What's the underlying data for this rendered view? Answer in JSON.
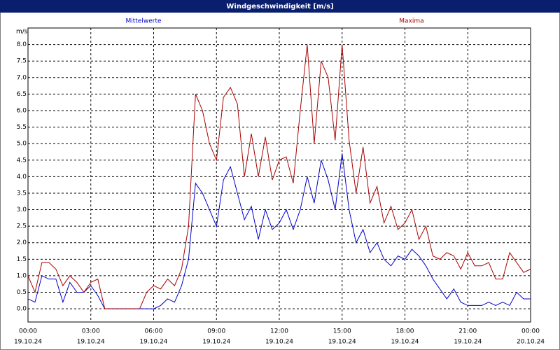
{
  "chart_data": {
    "type": "line",
    "title": "Windgeschwindigkeit [m/s]",
    "y_unit": "m/s",
    "x": [
      0,
      20,
      40,
      60,
      80,
      100,
      120,
      140,
      160,
      180,
      200,
      220,
      240,
      260,
      280,
      300,
      320,
      340,
      360,
      380,
      400,
      420,
      440,
      460,
      480,
      500,
      520,
      540,
      560,
      580,
      600,
      620,
      640,
      660,
      680,
      700,
      720,
      740,
      760,
      780,
      800,
      820,
      840,
      860,
      880,
      900,
      920,
      940,
      960,
      980,
      1000,
      1020,
      1040,
      1060,
      1080,
      1100,
      1120,
      1140,
      1160,
      1180,
      1200,
      1220,
      1240,
      1260,
      1280,
      1300,
      1320,
      1340,
      1360,
      1380,
      1400,
      1420,
      1440
    ],
    "series": [
      {
        "name": "Mittelwerte",
        "color": "#0000cc",
        "values": [
          0.3,
          0.2,
          1.0,
          0.9,
          0.9,
          0.2,
          0.8,
          0.5,
          0.5,
          0.7,
          0.4,
          0.0,
          0.0,
          0.0,
          0.0,
          0.0,
          0.0,
          0.0,
          0.0,
          0.1,
          0.3,
          0.2,
          0.7,
          1.5,
          3.8,
          3.5,
          3.0,
          2.5,
          3.9,
          4.3,
          3.5,
          2.7,
          3.1,
          2.1,
          3.0,
          2.4,
          2.6,
          3.0,
          2.4,
          3.0,
          4.0,
          3.2,
          4.5,
          3.9,
          3.0,
          4.7,
          3.0,
          2.0,
          2.4,
          1.7,
          2.0,
          1.5,
          1.3,
          1.6,
          1.5,
          1.8,
          1.6,
          1.3,
          0.9,
          0.6,
          0.3,
          0.6,
          0.2,
          0.1,
          0.1,
          0.1,
          0.2,
          0.1,
          0.2,
          0.1,
          0.5,
          0.3,
          0.3
        ]
      },
      {
        "name": "Maxima",
        "color": "#aa0000",
        "values": [
          1.0,
          0.5,
          1.4,
          1.4,
          1.2,
          0.7,
          1.0,
          0.8,
          0.5,
          0.8,
          0.9,
          0.0,
          0.0,
          0.0,
          0.0,
          0.0,
          0.0,
          0.5,
          0.7,
          0.6,
          0.9,
          0.7,
          1.2,
          2.5,
          6.5,
          6.0,
          5.0,
          4.5,
          6.4,
          6.7,
          6.2,
          4.0,
          5.3,
          4.0,
          5.2,
          3.9,
          4.5,
          4.6,
          3.8,
          6.0,
          8.0,
          5.0,
          7.5,
          7.0,
          5.1,
          8.0,
          5.1,
          3.5,
          4.9,
          3.2,
          3.7,
          2.6,
          3.1,
          2.4,
          2.6,
          3.0,
          2.1,
          2.5,
          1.6,
          1.5,
          1.7,
          1.6,
          1.2,
          1.7,
          1.3,
          1.3,
          1.4,
          0.9,
          0.9,
          1.7,
          1.4,
          1.1,
          1.2
        ]
      }
    ],
    "xlim": [
      0,
      1440
    ],
    "xticks": [
      {
        "value": 0,
        "label": "00:00"
      },
      {
        "value": 180,
        "label": "03:00"
      },
      {
        "value": 360,
        "label": "06:00"
      },
      {
        "value": 540,
        "label": "09:00"
      },
      {
        "value": 720,
        "label": "12:00"
      },
      {
        "value": 900,
        "label": "15:00"
      },
      {
        "value": 1080,
        "label": "18:00"
      },
      {
        "value": 1260,
        "label": "21:00"
      },
      {
        "value": 1440,
        "label": "00:00"
      }
    ],
    "xtick_dates": [
      "19.10.24",
      "19.10.24",
      "19.10.24",
      "19.10.24",
      "19.10.24",
      "19.10.24",
      "19.10.24",
      "19.10.24",
      "20.10.24"
    ],
    "ylim": [
      -0.4,
      8.5
    ],
    "yticks": [
      {
        "value": 0,
        "label": "0.0"
      },
      {
        "value": 0.5,
        "label": "0.5"
      },
      {
        "value": 1,
        "label": "1.0"
      },
      {
        "value": 1.5,
        "label": "1.5"
      },
      {
        "value": 2,
        "label": "2.0"
      },
      {
        "value": 2.5,
        "label": "2.5"
      },
      {
        "value": 3,
        "label": "3.0"
      },
      {
        "value": 3.5,
        "label": "3.5"
      },
      {
        "value": 4,
        "label": "4.0"
      },
      {
        "value": 4.5,
        "label": "4.5"
      },
      {
        "value": 5,
        "label": "5.0"
      },
      {
        "value": 5.5,
        "label": "5.5"
      },
      {
        "value": 6,
        "label": "6.0"
      },
      {
        "value": 6.5,
        "label": "6.5"
      },
      {
        "value": 7,
        "label": "7.0"
      },
      {
        "value": 7.5,
        "label": "7.5"
      },
      {
        "value": 8,
        "label": "8.0"
      }
    ],
    "grid": true
  }
}
